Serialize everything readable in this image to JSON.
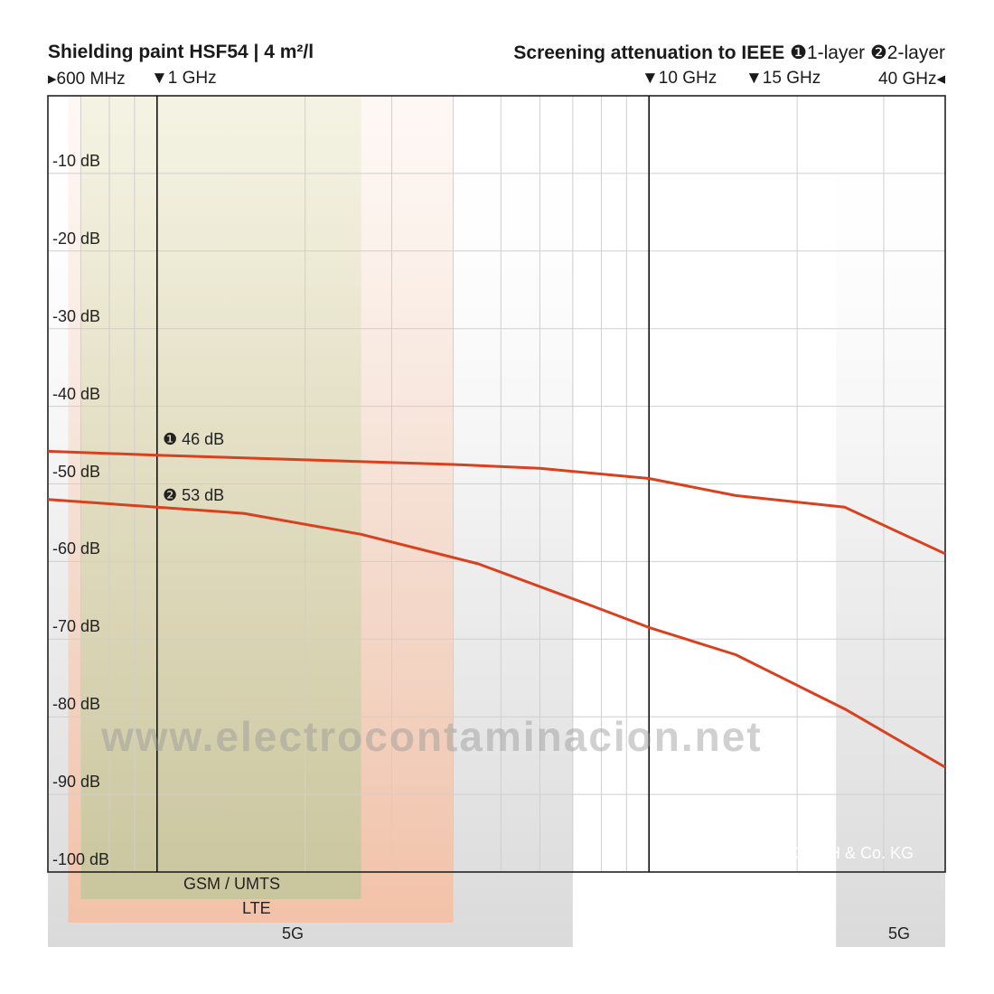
{
  "header": {
    "title_left": "Shielding paint HSF54 | 4 m²/l",
    "title_right_main": "Screening attenuation to IEEE",
    "title_right_layer1": "❶1-layer",
    "title_right_layer2": "❷2-layer",
    "marker_600": "▸600 MHz",
    "marker_1ghz": "▼1 GHz",
    "marker_10ghz": "▼10 GHz",
    "marker_15ghz": "▼15 GHz",
    "marker_40ghz": "40 GHz◂"
  },
  "bands": {
    "gsm": "GSM / UMTS",
    "lte": "LTE",
    "fiveg_left": "5G",
    "fiveg_right": "5G"
  },
  "annotations": {
    "layer1": "❶ 46 dB",
    "layer2": "❷ 53 dB"
  },
  "watermark": "www.electrocontaminacion.net",
  "copyright": "© YSHIELD GmbH & Co. KG",
  "chart_data": {
    "type": "line",
    "xscale": "log",
    "xlim_ghz": [
      0.6,
      40
    ],
    "ylim_db": [
      -100,
      0
    ],
    "grid": true,
    "yticks": [
      {
        "value": -10,
        "label": "-10 dB"
      },
      {
        "value": -20,
        "label": "-20 dB"
      },
      {
        "value": -30,
        "label": "-30 dB"
      },
      {
        "value": -40,
        "label": "-40 dB"
      },
      {
        "value": -50,
        "label": "-50 dB"
      },
      {
        "value": -60,
        "label": "-60 dB"
      },
      {
        "value": -70,
        "label": "-70 dB"
      },
      {
        "value": -80,
        "label": "-80 dB"
      },
      {
        "value": -90,
        "label": "-90 dB"
      },
      {
        "value": -100,
        "label": "-100 dB"
      }
    ],
    "markers_ghz": [
      1,
      10
    ],
    "series": [
      {
        "name": "❶1-layer",
        "color": "#d9401e",
        "x": [
          0.6,
          1,
          2,
          4,
          6,
          10,
          15,
          25,
          40
        ],
        "y": [
          -45.8,
          -46.3,
          -46.9,
          -47.5,
          -48.0,
          -49.3,
          -51.5,
          -53.0,
          -59.0
        ]
      },
      {
        "name": "❷2-layer",
        "color": "#d9401e",
        "x": [
          0.6,
          1,
          1.5,
          2.6,
          4.5,
          7.5,
          10,
          15,
          25,
          40
        ],
        "y": [
          -52.0,
          -53.0,
          -53.8,
          -56.5,
          -60.3,
          -65.5,
          -68.5,
          -72.0,
          -79.0,
          -86.5
        ]
      }
    ],
    "shaded_bands_ghz": [
      {
        "label": "GSM / UMTS",
        "from": 0.7,
        "to": 2.6,
        "color": "#c8c49a"
      },
      {
        "label": "LTE",
        "from": 0.66,
        "to": 4.0,
        "color": "#f4c8b0"
      },
      {
        "label": "5G",
        "from": 0.6,
        "to": 7.0,
        "color": "#dcdcdc"
      },
      {
        "label": "5G",
        "from": 24.0,
        "to": 40.0,
        "color": "#dcdcdc"
      }
    ]
  }
}
